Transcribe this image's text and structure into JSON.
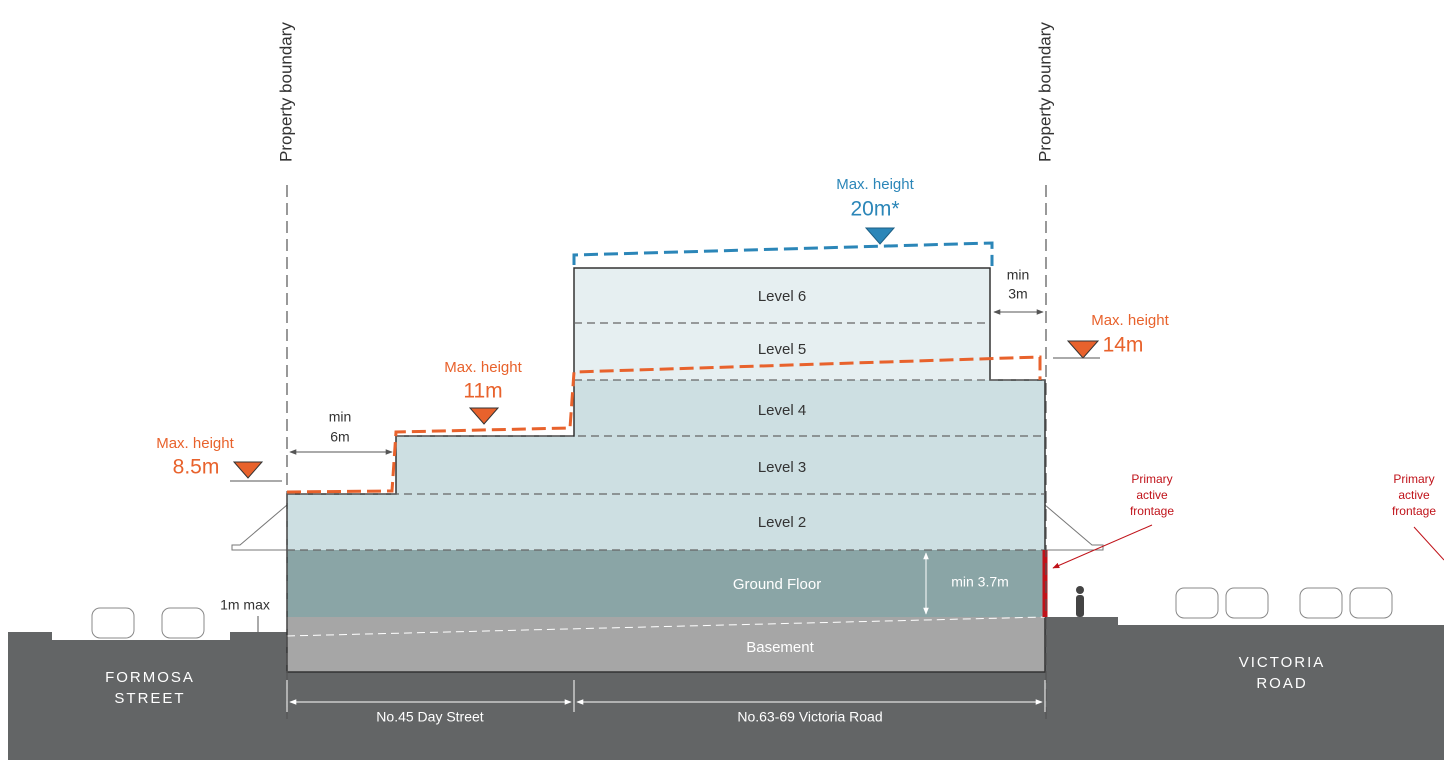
{
  "boundaries": [
    "Property boundary",
    "Property boundary"
  ],
  "height_limits": [
    {
      "label": "Max. height",
      "value": "20m*"
    },
    {
      "label": "Max. height",
      "value": "14m"
    },
    {
      "label": "Max. height",
      "value": "11m"
    },
    {
      "label": "Max. height",
      "value": "8.5m"
    }
  ],
  "setbacks": [
    {
      "label": "min",
      "value": "3m"
    },
    {
      "label": "min",
      "value": "6m"
    }
  ],
  "levels": [
    "Level 6",
    "Level 5",
    "Level 4",
    "Level 3",
    "Level 2",
    "Ground Floor",
    "Basement"
  ],
  "dimensions": {
    "ground_floor": "min 3.7m",
    "step": "1m max"
  },
  "frontages": [
    [
      "Primary",
      "active",
      "frontage"
    ],
    [
      "Primary",
      "active",
      "frontage"
    ]
  ],
  "streets": [
    [
      "FORMOSA",
      "STREET"
    ],
    [
      "VICTORIA",
      "ROAD"
    ]
  ],
  "sites": [
    "No.45 Day Street",
    "No.63-69 Victoria Road"
  ]
}
